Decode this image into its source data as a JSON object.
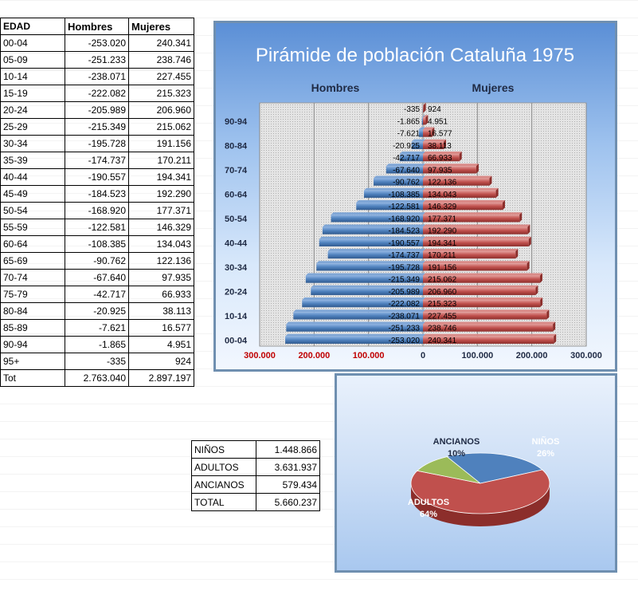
{
  "table": {
    "headers": [
      "EDAD",
      "Hombres",
      "Mujeres"
    ],
    "rows": [
      [
        "00-04",
        "-253.020",
        "240.341"
      ],
      [
        "05-09",
        "-251.233",
        "238.746"
      ],
      [
        "10-14",
        "-238.071",
        "227.455"
      ],
      [
        "15-19",
        "-222.082",
        "215.323"
      ],
      [
        "20-24",
        "-205.989",
        "206.960"
      ],
      [
        "25-29",
        "-215.349",
        "215.062"
      ],
      [
        "30-34",
        "-195.728",
        "191.156"
      ],
      [
        "35-39",
        "-174.737",
        "170.211"
      ],
      [
        "40-44",
        "-190.557",
        "194.341"
      ],
      [
        "45-49",
        "-184.523",
        "192.290"
      ],
      [
        "50-54",
        "-168.920",
        "177.371"
      ],
      [
        "55-59",
        "-122.581",
        "146.329"
      ],
      [
        "60-64",
        "-108.385",
        "134.043"
      ],
      [
        "65-69",
        "-90.762",
        "122.136"
      ],
      [
        "70-74",
        "-67.640",
        "97.935"
      ],
      [
        "75-79",
        "-42.717",
        "66.933"
      ],
      [
        "80-84",
        "-20.925",
        "38.113"
      ],
      [
        "85-89",
        "-7.621",
        "16.577"
      ],
      [
        "90-94",
        "-1.865",
        "4.951"
      ],
      [
        "95+",
        "-335",
        "924"
      ]
    ],
    "total": [
      "Tot",
      "2.763.040",
      "2.897.197"
    ]
  },
  "summary": {
    "rows": [
      [
        "NIÑOS",
        "1.448.866"
      ],
      [
        "ADULTOS",
        "3.631.937"
      ],
      [
        "ANCIANOS",
        "579.434"
      ],
      [
        "TOTAL",
        "5.660.237"
      ]
    ]
  },
  "chart_data": [
    {
      "type": "bar",
      "orientation": "horizontal",
      "title": "Pirámide de población  Cataluña 1975",
      "categories": [
        "00-04",
        "05-09",
        "10-14",
        "15-19",
        "20-24",
        "25-29",
        "30-34",
        "35-39",
        "40-44",
        "45-49",
        "50-54",
        "55-59",
        "60-64",
        "65-69",
        "70-74",
        "75-79",
        "80-84",
        "85-89",
        "90-94",
        "95+"
      ],
      "category_tick_labels": [
        "00-04",
        "10-14",
        "20-24",
        "30-34",
        "40-44",
        "50-54",
        "60-64",
        "70-74",
        "80-84",
        "90-94"
      ],
      "series": [
        {
          "name": "Hombres",
          "color": "#4f81bd",
          "values": [
            -253020,
            -251233,
            -238071,
            -222082,
            -205989,
            -215349,
            -195728,
            -174737,
            -190557,
            -184523,
            -168920,
            -122581,
            -108385,
            -90762,
            -67640,
            -42717,
            -20925,
            -7621,
            -1865,
            -335
          ],
          "labels": [
            "-253.020",
            "-251.233",
            "-238.071",
            "-222.082",
            "-205.989",
            "-215.349",
            "-195.728",
            "-174.737",
            "-190.557",
            "-184.523",
            "-168.920",
            "-122.581",
            "-108.385",
            "-90.762",
            "-67.640",
            "-42.717",
            "-20.925",
            "-7.621",
            "-1.865",
            "-335"
          ]
        },
        {
          "name": "Mujeres",
          "color": "#c0504d",
          "values": [
            240341,
            238746,
            227455,
            215323,
            206960,
            215062,
            191156,
            170211,
            194341,
            192290,
            177371,
            146329,
            134043,
            122136,
            97935,
            66933,
            38113,
            16577,
            4951,
            924
          ],
          "labels": [
            "240.341",
            "238.746",
            "227.455",
            "215.323",
            "206.960",
            "215.062",
            "191.156",
            "170.211",
            "194.341",
            "192.290",
            "177.371",
            "146.329",
            "134.043",
            "122.136",
            "97.935",
            "66.933",
            "38.113",
            "16.577",
            "4.951",
            "924"
          ]
        }
      ],
      "xlim": [
        -300000,
        300000
      ],
      "xticks": [
        -300000,
        -200000,
        -100000,
        0,
        100000,
        200000,
        300000
      ],
      "xtick_labels": [
        "300.000",
        "200.000",
        "100.000",
        "0",
        "100.000",
        "200.000",
        "300.000"
      ],
      "grid": true
    },
    {
      "type": "pie",
      "style": "3d",
      "slices": [
        {
          "name": "NIÑOS",
          "value": 1448866,
          "label": "NIÑOS",
          "pct": "26%",
          "color": "#4f81bd"
        },
        {
          "name": "ADULTOS",
          "value": 3631937,
          "label": "ADULTOS",
          "pct": "64%",
          "color": "#c0504d"
        },
        {
          "name": "ANCIANOS",
          "value": 579434,
          "label": "ANCIANOS",
          "pct": "10%",
          "color": "#9bbb59"
        }
      ]
    }
  ]
}
